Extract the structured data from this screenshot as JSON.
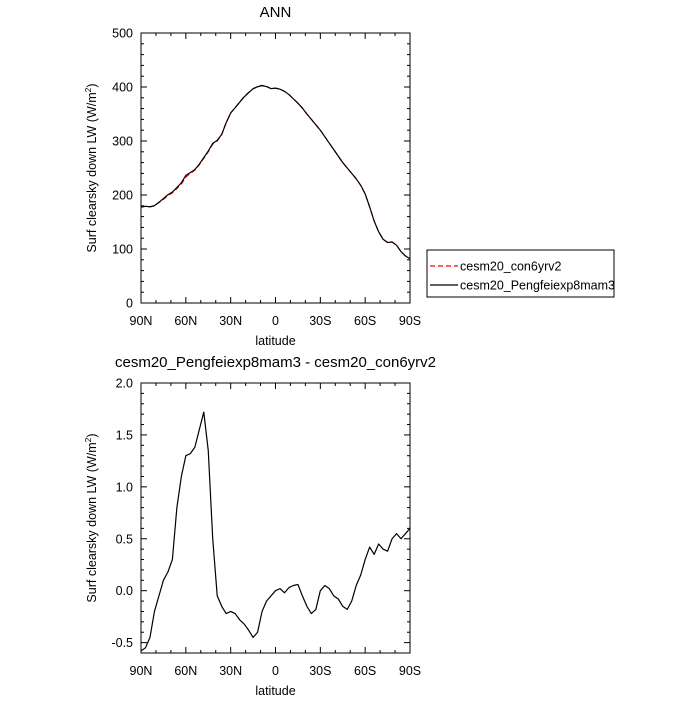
{
  "chart_data": [
    {
      "type": "line",
      "title": "ANN",
      "xlabel": "latitude",
      "ylabel": "Surf clearsky down LW (W/m²)",
      "ylabel_parts": [
        "Surf clearsky down LW (W/m",
        "2",
        ")"
      ],
      "xlim": [
        90,
        -90
      ],
      "ylim": [
        0,
        500
      ],
      "xticks": [
        90,
        60,
        30,
        0,
        -30,
        -60,
        -90
      ],
      "xtick_labels": [
        "90N",
        "60N",
        "30N",
        "0",
        "30S",
        "60S",
        "90S"
      ],
      "yticks": [
        0,
        100,
        200,
        300,
        400,
        500
      ],
      "ytick_labels": [
        "0",
        "100",
        "200",
        "300",
        "400",
        "500"
      ],
      "legend_placement": "right",
      "series": [
        {
          "name": "cesm20_con6yrv2",
          "color": "#ff0000",
          "dash": "dashed",
          "x": [
            90,
            87,
            84,
            81,
            78,
            75,
            72,
            69,
            66,
            63,
            60,
            57,
            54,
            51,
            48,
            45,
            42,
            39,
            36,
            33,
            30,
            27,
            24,
            21,
            18,
            15,
            12,
            9,
            6,
            3,
            0,
            -3,
            -6,
            -9,
            -12,
            -15,
            -18,
            -21,
            -24,
            -27,
            -30,
            -33,
            -36,
            -39,
            -42,
            -45,
            -48,
            -51,
            -54,
            -57,
            -60,
            -63,
            -66,
            -69,
            -72,
            -75,
            -78,
            -81,
            -84,
            -87,
            -90
          ],
          "y": [
            178,
            179,
            178,
            180,
            186,
            192,
            199,
            204,
            212,
            220,
            233,
            240,
            246,
            256,
            268,
            280,
            294,
            300,
            312,
            334,
            352,
            362,
            372,
            382,
            390,
            397,
            401,
            403,
            401,
            397,
            398,
            396,
            392,
            386,
            378,
            370,
            361,
            350,
            340,
            330,
            320,
            308,
            296,
            284,
            272,
            260,
            250,
            240,
            230,
            218,
            202,
            178,
            152,
            132,
            118,
            112,
            113,
            107,
            95,
            87,
            82
          ]
        },
        {
          "name": "cesm20_Pengfeiexp8mam3",
          "color": "#000000",
          "dash": "solid",
          "x": [
            90,
            87,
            84,
            81,
            78,
            75,
            72,
            69,
            66,
            63,
            60,
            57,
            54,
            51,
            48,
            45,
            42,
            39,
            36,
            33,
            30,
            27,
            24,
            21,
            18,
            15,
            12,
            9,
            6,
            3,
            0,
            -3,
            -6,
            -9,
            -12,
            -15,
            -18,
            -21,
            -24,
            -27,
            -30,
            -33,
            -36,
            -39,
            -42,
            -45,
            -48,
            -51,
            -54,
            -57,
            -60,
            -63,
            -66,
            -69,
            -72,
            -75,
            -78,
            -81,
            -84,
            -87,
            -90
          ],
          "y": [
            177.5,
            179,
            178.2,
            180.3,
            186.5,
            193.3,
            200.5,
            205.5,
            213.9,
            222.5,
            236.3,
            241.5,
            247,
            257,
            269.2,
            281.4,
            295.6,
            301.2,
            312.2,
            333.9,
            351.8,
            361.5,
            371.8,
            381.6,
            389.5,
            396.6,
            400.5,
            402.5,
            400.8,
            397,
            397.9,
            395.9,
            392,
            386,
            378,
            370,
            361,
            350,
            340,
            330,
            320,
            308,
            296,
            284,
            272,
            260,
            250,
            240,
            230,
            218,
            202,
            178,
            152,
            132,
            118,
            112,
            113,
            107,
            95,
            87,
            82
          ]
        }
      ]
    },
    {
      "type": "line",
      "title": "cesm20_Pengfeiexp8mam3 - cesm20_con6yrv2",
      "xlabel": "latitude",
      "ylabel": "Surf clearsky down LW (W/m²)",
      "ylabel_parts": [
        "Surf clearsky down LW (W/m",
        "2",
        ")"
      ],
      "xlim": [
        90,
        -90
      ],
      "ylim": [
        -0.6,
        2.0
      ],
      "xticks": [
        90,
        60,
        30,
        0,
        -30,
        -60,
        -90
      ],
      "xtick_labels": [
        "90N",
        "60N",
        "30N",
        "0",
        "30S",
        "60S",
        "90S"
      ],
      "yticks": [
        -0.5,
        0,
        0.5,
        1.0,
        1.5,
        2.0
      ],
      "ytick_labels": [
        "-0.5",
        "0.0",
        "0.5",
        "1.0",
        "1.5",
        "2.0"
      ],
      "series": [
        {
          "color": "#000000",
          "dash": "solid",
          "x": [
            90,
            87,
            84,
            81,
            78,
            75,
            72,
            69,
            66,
            63,
            60,
            57,
            54,
            51,
            48,
            45,
            42,
            39,
            36,
            33,
            30,
            27,
            24,
            21,
            18,
            15,
            12,
            9,
            6,
            3,
            0,
            -3,
            -6,
            -9,
            -12,
            -15,
            -18,
            -21,
            -24,
            -27,
            -30,
            -33,
            -36,
            -39,
            -42,
            -45,
            -48,
            -51,
            -54,
            -57,
            -60,
            -63,
            -66,
            -69,
            -72,
            -75,
            -78,
            -81,
            -84,
            -87,
            -90
          ],
          "y": [
            -0.58,
            -0.55,
            -0.45,
            -0.2,
            -0.05,
            0.1,
            0.18,
            0.3,
            0.8,
            1.1,
            1.3,
            1.32,
            1.38,
            1.55,
            1.72,
            1.35,
            0.5,
            -0.05,
            -0.15,
            -0.22,
            -0.2,
            -0.22,
            -0.28,
            -0.32,
            -0.38,
            -0.45,
            -0.4,
            -0.2,
            -0.1,
            -0.05,
            0.0,
            0.02,
            -0.02,
            0.03,
            0.05,
            0.06,
            -0.05,
            -0.15,
            -0.22,
            -0.18,
            0.0,
            0.05,
            0.02,
            -0.05,
            -0.08,
            -0.15,
            -0.18,
            -0.1,
            0.05,
            0.15,
            0.3,
            0.42,
            0.35,
            0.45,
            0.4,
            0.38,
            0.5,
            0.55,
            0.5,
            0.55,
            0.6
          ]
        }
      ]
    }
  ]
}
